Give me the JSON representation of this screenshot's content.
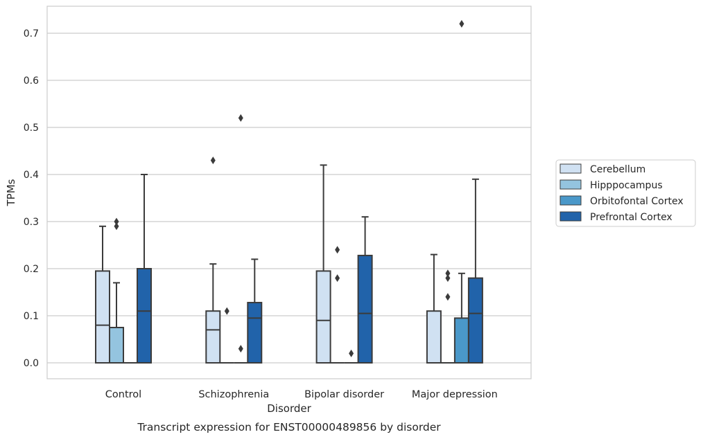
{
  "chart_data": {
    "type": "box",
    "title": "Transcript expression for ENST00000489856 by disorder",
    "xlabel": "Disorder",
    "ylabel": "TPMs",
    "categories": [
      "Control",
      "Schizophrenia",
      "Bipolar disorder",
      "Major depression"
    ],
    "ylim": [
      -0.035,
      0.758
    ],
    "yticks": [
      0.0,
      0.1,
      0.2,
      0.3,
      0.4,
      0.5,
      0.6,
      0.7
    ],
    "ytick_labels": [
      "0.0",
      "0.1",
      "0.2",
      "0.3",
      "0.4",
      "0.5",
      "0.6",
      "0.7"
    ],
    "grid": "y",
    "legend_position": "right",
    "series": [
      {
        "name": "Cerebellum",
        "color": "#d0e1f2",
        "boxes": [
          {
            "q1": 0.0,
            "median": 0.08,
            "q3": 0.195,
            "whisker_low": 0.0,
            "whisker_high": 0.29,
            "outliers": []
          },
          {
            "q1": 0.0,
            "median": 0.07,
            "q3": 0.11,
            "whisker_low": 0.0,
            "whisker_high": 0.21,
            "outliers": [
              0.43
            ]
          },
          {
            "q1": 0.0,
            "median": 0.09,
            "q3": 0.195,
            "whisker_low": 0.0,
            "whisker_high": 0.42,
            "outliers": []
          },
          {
            "q1": 0.0,
            "median": 0.0,
            "q3": 0.11,
            "whisker_low": 0.0,
            "whisker_high": 0.23,
            "outliers": []
          }
        ]
      },
      {
        "name": "Hipppocampus",
        "color": "#94c4df",
        "boxes": [
          {
            "q1": 0.0,
            "median": 0.075,
            "q3": 0.075,
            "whisker_low": 0.0,
            "whisker_high": 0.17,
            "outliers": [
              0.29,
              0.3
            ]
          },
          {
            "q1": 0.0,
            "median": 0.0,
            "q3": 0.0,
            "whisker_low": 0.0,
            "whisker_high": 0.0,
            "outliers": [
              0.11
            ]
          },
          {
            "q1": 0.0,
            "median": 0.0,
            "q3": 0.0,
            "whisker_low": 0.0,
            "whisker_high": 0.0,
            "outliers": [
              0.18,
              0.24
            ]
          },
          {
            "q1": 0.0,
            "median": 0.0,
            "q3": 0.0,
            "whisker_low": 0.0,
            "whisker_high": 0.0,
            "outliers": [
              0.14,
              0.18,
              0.19
            ]
          }
        ]
      },
      {
        "name": "Orbitofontal Cortex",
        "color": "#4a98c9",
        "boxes": [
          {
            "q1": 0.0,
            "median": 0.0,
            "q3": 0.0,
            "whisker_low": 0.0,
            "whisker_high": 0.0,
            "outliers": []
          },
          {
            "q1": 0.0,
            "median": 0.0,
            "q3": 0.0,
            "whisker_low": 0.0,
            "whisker_high": 0.0,
            "outliers": [
              0.03,
              0.52
            ]
          },
          {
            "q1": 0.0,
            "median": 0.0,
            "q3": 0.0,
            "whisker_low": 0.0,
            "whisker_high": 0.0,
            "outliers": [
              0.02
            ]
          },
          {
            "q1": 0.0,
            "median": 0.0,
            "q3": 0.095,
            "whisker_low": 0.0,
            "whisker_high": 0.19,
            "outliers": [
              0.72
            ]
          }
        ]
      },
      {
        "name": "Prefrontal Cortex",
        "color": "#2163aa",
        "boxes": [
          {
            "q1": 0.0,
            "median": 0.11,
            "q3": 0.2,
            "whisker_low": 0.0,
            "whisker_high": 0.4,
            "outliers": []
          },
          {
            "q1": 0.0,
            "median": 0.095,
            "q3": 0.128,
            "whisker_low": 0.0,
            "whisker_high": 0.22,
            "outliers": []
          },
          {
            "q1": 0.0,
            "median": 0.105,
            "q3": 0.228,
            "whisker_low": 0.0,
            "whisker_high": 0.31,
            "outliers": []
          },
          {
            "q1": 0.0,
            "median": 0.105,
            "q3": 0.18,
            "whisker_low": 0.0,
            "whisker_high": 0.39,
            "outliers": []
          }
        ]
      }
    ]
  }
}
